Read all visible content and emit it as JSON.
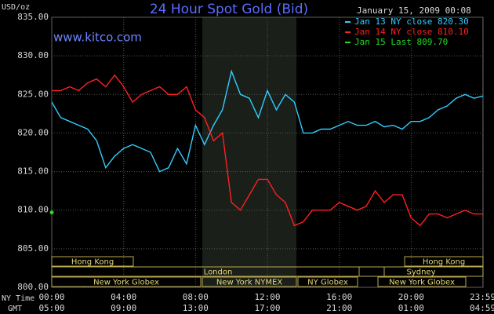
{
  "chart_data": {
    "type": "line",
    "title": "24 Hour Spot Gold (Bid)",
    "timestamp": "January 15, 2009 00:08",
    "watermark": "www.kitco.com",
    "y_label": "USD/oz",
    "x_label": "NY Time",
    "x2_label": "GMT",
    "x": [
      0,
      0.5,
      1,
      1.5,
      2,
      2.5,
      3,
      3.5,
      4,
      4.5,
      5,
      5.5,
      6,
      6.5,
      7,
      7.5,
      8,
      8.5,
      9,
      9.5,
      10,
      10.5,
      11,
      11.5,
      12,
      12.5,
      13,
      13.5,
      14,
      14.5,
      15,
      15.5,
      16,
      16.5,
      17,
      17.5,
      18,
      18.5,
      19,
      19.5,
      20,
      20.5,
      21,
      21.5,
      22,
      22.5,
      23,
      23.5,
      24
    ],
    "series": [
      {
        "name": "Jan 13 NY close 820.30",
        "color": "#33ccff",
        "values": [
          824,
          822,
          821.5,
          821,
          820.5,
          819,
          815.5,
          817,
          818,
          818.5,
          818,
          817.5,
          815,
          815.5,
          818,
          816,
          821,
          818.5,
          821,
          823,
          828,
          825,
          824.5,
          822,
          825.5,
          823,
          825,
          824,
          820,
          820,
          820.5,
          820.5,
          821,
          821.5,
          821,
          821,
          821.5,
          820.8,
          821,
          820.5,
          821.5,
          821.5,
          822,
          823,
          823.5,
          824.5,
          825,
          824.5,
          824.8
        ]
      },
      {
        "name": "Jan 14 NY close 810.10",
        "color": "#ff2020",
        "values": [
          825.5,
          825.5,
          826,
          825.5,
          826.5,
          827,
          826,
          827.5,
          826,
          824,
          825,
          825.5,
          826,
          825,
          825,
          826,
          823,
          822,
          819,
          820,
          811,
          810,
          812,
          814,
          814,
          812,
          811,
          808,
          808.5,
          810,
          810,
          810,
          811,
          810.5,
          810,
          810.5,
          812.5,
          811,
          812,
          812,
          809,
          808,
          809.5,
          809.5,
          809,
          809.5,
          810,
          809.5,
          809.5
        ]
      },
      {
        "name": "Jan 15 Last 809.70",
        "color": "#22dd22",
        "values": [
          809.7,
          null,
          null,
          null,
          null,
          null,
          null,
          null,
          null,
          null,
          null,
          null,
          null,
          null,
          null,
          null,
          null,
          null,
          null,
          null,
          null,
          null,
          null,
          null,
          null,
          null,
          null,
          null,
          null,
          null,
          null,
          null,
          null,
          null,
          null,
          null,
          null,
          null,
          null,
          null,
          null,
          null,
          null,
          null,
          null,
          null,
          null,
          null,
          null
        ]
      }
    ],
    "xlim": [
      0,
      24
    ],
    "xticks": [
      {
        "value": 0,
        "label": "00:00"
      },
      {
        "value": 4,
        "label": "04:00"
      },
      {
        "value": 8,
        "label": "08:00"
      },
      {
        "value": 12,
        "label": "12:00"
      },
      {
        "value": 16,
        "label": "16:00"
      },
      {
        "value": 20,
        "label": "20:00"
      },
      {
        "value": 23.98,
        "label": "23:59"
      }
    ],
    "gmt_labels": [
      "05:00",
      "09:00",
      "13:00",
      "17:00",
      "21:00",
      "01:00",
      "04:59"
    ],
    "ylim": [
      800,
      835
    ],
    "yticks": [
      {
        "value": 800,
        "label": "800.00"
      },
      {
        "value": 805,
        "label": "805.00"
      },
      {
        "value": 810,
        "label": "810.00"
      },
      {
        "value": 815,
        "label": "815.00"
      },
      {
        "value": 820,
        "label": "820.00"
      },
      {
        "value": 825,
        "label": "825.00"
      },
      {
        "value": 830,
        "label": "830.00"
      },
      {
        "value": 835,
        "label": "835.00"
      }
    ],
    "grid": true,
    "sessions": [
      "Hong Kong",
      "Hong Kong",
      "London",
      "Sydney",
      "New York Globex",
      "New York NYMEX",
      "NY Globex",
      "New York Globex"
    ]
  }
}
